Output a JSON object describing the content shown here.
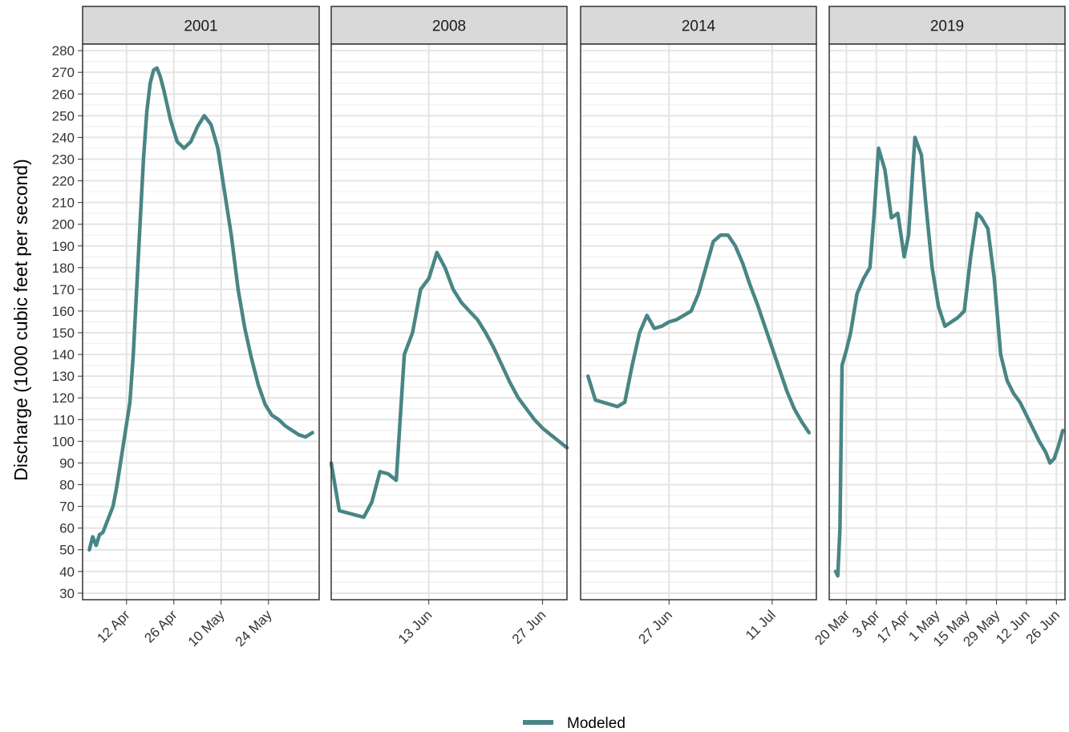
{
  "chart_data": {
    "type": "line",
    "ylabel": "Discharge (1000 cubic feet per second)",
    "ylim": [
      27,
      283
    ],
    "yticks": [
      30,
      40,
      50,
      60,
      70,
      80,
      90,
      100,
      110,
      120,
      130,
      140,
      150,
      160,
      170,
      180,
      190,
      200,
      210,
      220,
      230,
      240,
      250,
      260,
      270,
      280
    ],
    "grid": true,
    "legend": {
      "position": "bottom",
      "entries": [
        {
          "label": "Modeled",
          "color": "#4a8585"
        }
      ]
    },
    "series_color": "#4a8585",
    "facets": [
      {
        "title": "2001",
        "xrange": [
          "2001-03-30",
          "2001-06-08"
        ],
        "xticks": [
          {
            "date": "2001-04-12",
            "label": "12 Apr"
          },
          {
            "date": "2001-04-26",
            "label": "26 Apr"
          },
          {
            "date": "2001-05-10",
            "label": "10 May"
          },
          {
            "date": "2001-05-24",
            "label": "24 May"
          }
        ],
        "series": [
          {
            "name": "Modeled",
            "x": [
              "2001-04-01",
              "2001-04-02",
              "2001-04-03",
              "2001-04-04",
              "2001-04-05",
              "2001-04-06",
              "2001-04-07",
              "2001-04-08",
              "2001-04-09",
              "2001-04-10",
              "2001-04-11",
              "2001-04-12",
              "2001-04-13",
              "2001-04-14",
              "2001-04-15",
              "2001-04-16",
              "2001-04-17",
              "2001-04-18",
              "2001-04-19",
              "2001-04-20",
              "2001-04-21",
              "2001-04-22",
              "2001-04-23",
              "2001-04-24",
              "2001-04-25",
              "2001-04-27",
              "2001-04-29",
              "2001-05-01",
              "2001-05-03",
              "2001-05-05",
              "2001-05-07",
              "2001-05-09",
              "2001-05-11",
              "2001-05-13",
              "2001-05-15",
              "2001-05-17",
              "2001-05-19",
              "2001-05-21",
              "2001-05-23",
              "2001-05-25",
              "2001-05-27",
              "2001-05-29",
              "2001-05-31",
              "2001-06-02",
              "2001-06-04",
              "2001-06-06"
            ],
            "y": [
              50,
              56,
              52,
              57,
              58,
              62,
              66,
              70,
              78,
              88,
              98,
              108,
              118,
              140,
              170,
              200,
              230,
              252,
              265,
              271,
              272,
              268,
              262,
              255,
              248,
              238,
              235,
              238,
              245,
              250,
              246,
              235,
              215,
              195,
              170,
              152,
              138,
              126,
              117,
              112,
              110,
              107,
              105,
              103,
              102,
              104
            ]
          }
        ]
      },
      {
        "title": "2008",
        "xrange": [
          "2008-06-01",
          "2008-06-30"
        ],
        "xticks": [
          {
            "date": "2008-06-13",
            "label": "13 Jun"
          },
          {
            "date": "2008-06-27",
            "label": "27 Jun"
          }
        ],
        "series": [
          {
            "name": "Modeled",
            "x": [
              "2008-06-01",
              "2008-06-02",
              "2008-06-03",
              "2008-06-04",
              "2008-06-05",
              "2008-06-06",
              "2008-06-07",
              "2008-06-08",
              "2008-06-09",
              "2008-06-10",
              "2008-06-11",
              "2008-06-12",
              "2008-06-13",
              "2008-06-14",
              "2008-06-15",
              "2008-06-16",
              "2008-06-17",
              "2008-06-18",
              "2008-06-19",
              "2008-06-20",
              "2008-06-21",
              "2008-06-22",
              "2008-06-23",
              "2008-06-24",
              "2008-06-25",
              "2008-06-26",
              "2008-06-27",
              "2008-06-28",
              "2008-06-29",
              "2008-06-30"
            ],
            "y": [
              90,
              68,
              67,
              66,
              65,
              72,
              86,
              85,
              82,
              140,
              150,
              170,
              175,
              187,
              180,
              170,
              164,
              160,
              156,
              150,
              143,
              135,
              127,
              120,
              115,
              110,
              106,
              103,
              100,
              97
            ]
          }
        ]
      },
      {
        "title": "2014",
        "xrange": [
          "2014-06-15",
          "2014-07-17"
        ],
        "xticks": [
          {
            "date": "2014-06-27",
            "label": "27 Jun"
          },
          {
            "date": "2014-07-11",
            "label": "11 Jul"
          }
        ],
        "series": [
          {
            "name": "Modeled",
            "x": [
              "2014-06-16",
              "2014-06-17",
              "2014-06-18",
              "2014-06-19",
              "2014-06-20",
              "2014-06-21",
              "2014-06-22",
              "2014-06-23",
              "2014-06-24",
              "2014-06-25",
              "2014-06-26",
              "2014-06-27",
              "2014-06-28",
              "2014-06-29",
              "2014-06-30",
              "2014-07-01",
              "2014-07-02",
              "2014-07-03",
              "2014-07-04",
              "2014-07-05",
              "2014-07-06",
              "2014-07-07",
              "2014-07-08",
              "2014-07-09",
              "2014-07-10",
              "2014-07-11",
              "2014-07-12",
              "2014-07-13",
              "2014-07-14",
              "2014-07-15",
              "2014-07-16"
            ],
            "y": [
              130,
              119,
              118,
              117,
              116,
              118,
              135,
              150,
              158,
              152,
              153,
              155,
              156,
              158,
              160,
              168,
              180,
              192,
              195,
              195,
              190,
              182,
              172,
              163,
              153,
              143,
              133,
              123,
              115,
              109,
              104
            ]
          }
        ]
      },
      {
        "title": "2019",
        "xrange": [
          "2019-03-12",
          "2019-06-30"
        ],
        "xticks": [
          {
            "date": "2019-03-20",
            "label": "20 Mar"
          },
          {
            "date": "2019-04-03",
            "label": "3 Apr"
          },
          {
            "date": "2019-04-17",
            "label": "17 Apr"
          },
          {
            "date": "2019-05-01",
            "label": "1 May"
          },
          {
            "date": "2019-05-15",
            "label": "15 May"
          },
          {
            "date": "2019-05-29",
            "label": "29 May"
          },
          {
            "date": "2019-06-12",
            "label": "12 Jun"
          },
          {
            "date": "2019-06-26",
            "label": "26 Jun"
          }
        ],
        "series": [
          {
            "name": "Modeled",
            "x": [
              "2019-03-15",
              "2019-03-16",
              "2019-03-17",
              "2019-03-18",
              "2019-03-20",
              "2019-03-22",
              "2019-03-25",
              "2019-03-28",
              "2019-03-31",
              "2019-04-02",
              "2019-04-04",
              "2019-04-07",
              "2019-04-10",
              "2019-04-13",
              "2019-04-16",
              "2019-04-18",
              "2019-04-21",
              "2019-04-24",
              "2019-04-26",
              "2019-04-29",
              "2019-05-02",
              "2019-05-05",
              "2019-05-08",
              "2019-05-11",
              "2019-05-14",
              "2019-05-17",
              "2019-05-20",
              "2019-05-22",
              "2019-05-25",
              "2019-05-28",
              "2019-05-31",
              "2019-06-03",
              "2019-06-06",
              "2019-06-09",
              "2019-06-12",
              "2019-06-15",
              "2019-06-18",
              "2019-06-21",
              "2019-06-23",
              "2019-06-25",
              "2019-06-27",
              "2019-06-29"
            ],
            "y": [
              40,
              38,
              60,
              135,
              142,
              150,
              168,
              175,
              180,
              205,
              235,
              225,
              203,
              205,
              185,
              195,
              240,
              232,
              210,
              180,
              162,
              153,
              155,
              157,
              160,
              185,
              205,
              203,
              198,
              175,
              140,
              128,
              122,
              118,
              112,
              106,
              100,
              95,
              90,
              92,
              98,
              105
            ]
          }
        ]
      }
    ]
  }
}
